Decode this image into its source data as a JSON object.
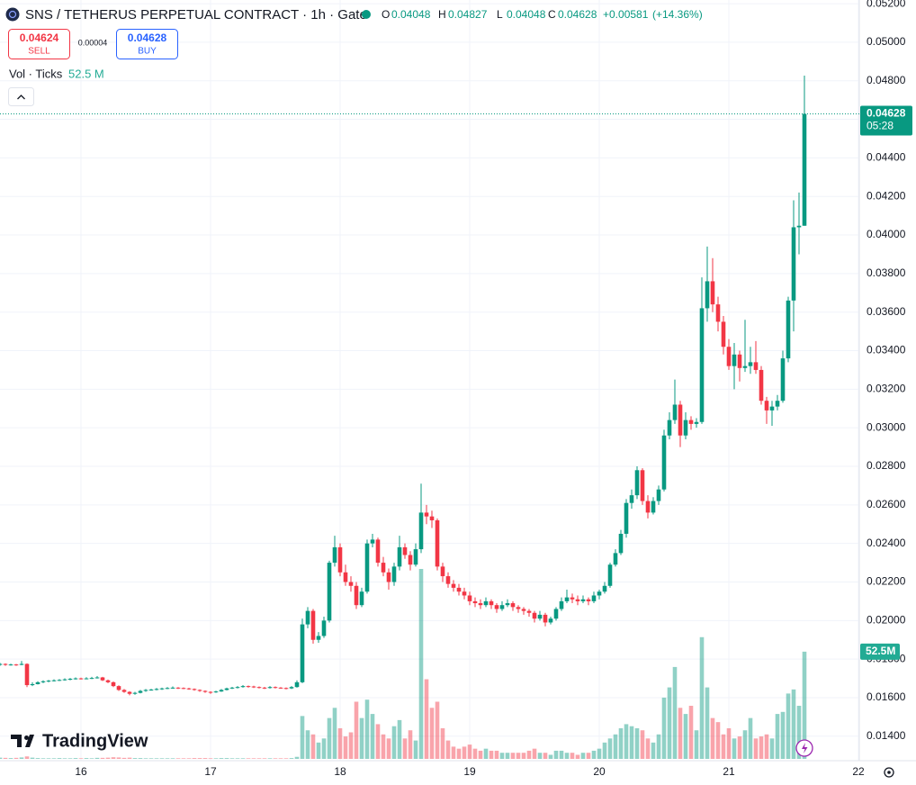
{
  "chart_data": {
    "type": "candlestick",
    "title": "SNS / TETHERUS PERPETUAL CONTRACT · 1h · Gate",
    "ohlc_labels": [
      "O",
      "H",
      "L",
      "C"
    ],
    "change": "+0.00581",
    "change_percent": "(+14.36%)",
    "sell_price": 0.04624,
    "sell_label": "SELL",
    "spread": 4e-05,
    "buy_price": 0.04628,
    "buy_label": "BUY",
    "volume_title": "Vol · Ticks",
    "volume_label": "52.5 M",
    "volume_axis_label": "52.5M",
    "countdown": "05:28",
    "brand": "TradingView",
    "grid": true,
    "up_color": "#089981",
    "down_color": "#f23645",
    "volume_up_color": "rgba(8,153,129,0.45)",
    "volume_down_color": "rgba(242,54,69,0.45)",
    "xlim": [
      0,
      159.5
    ],
    "xticks": [
      {
        "value": 15,
        "label": "16"
      },
      {
        "value": 39,
        "label": "17"
      },
      {
        "value": 63,
        "label": "18"
      },
      {
        "value": 87,
        "label": "19"
      },
      {
        "value": 111,
        "label": "20"
      },
      {
        "value": 135,
        "label": "21"
      },
      {
        "value": 159,
        "label": "22"
      }
    ],
    "ylim": [
      0.01273,
      0.05219
    ],
    "yticks": [
      {
        "value": 0.052,
        "label": "0.05200"
      },
      {
        "value": 0.05,
        "label": "0.05000"
      },
      {
        "value": 0.048,
        "label": "0.04800"
      },
      {
        "value": 0.046,
        "label": "0.04600"
      },
      {
        "value": 0.044,
        "label": "0.04400"
      },
      {
        "value": 0.042,
        "label": "0.04200"
      },
      {
        "value": 0.04,
        "label": "0.04000"
      },
      {
        "value": 0.038,
        "label": "0.03800"
      },
      {
        "value": 0.036,
        "label": "0.03600"
      },
      {
        "value": 0.034,
        "label": "0.03400"
      },
      {
        "value": 0.032,
        "label": "0.03200"
      },
      {
        "value": 0.03,
        "label": "0.03000"
      },
      {
        "value": 0.028,
        "label": "0.02800"
      },
      {
        "value": 0.026,
        "label": "0.02600"
      },
      {
        "value": 0.024,
        "label": "0.02400"
      },
      {
        "value": 0.022,
        "label": "0.02200"
      },
      {
        "value": 0.02,
        "label": "0.02000"
      },
      {
        "value": 0.018,
        "label": "0.01800"
      },
      {
        "value": 0.016,
        "label": "0.01600"
      },
      {
        "value": 0.014,
        "label": "0.01400"
      }
    ],
    "open": [
      0.0177,
      0.01775,
      0.0177,
      0.01772,
      0.0177,
      0.01775,
      0.01665,
      0.0167,
      0.0168,
      0.01685,
      0.01688,
      0.0169,
      0.01692,
      0.01695,
      0.01698,
      0.017,
      0.01698,
      0.017,
      0.01702,
      0.01705,
      0.0169,
      0.0168,
      0.0166,
      0.0164,
      0.0163,
      0.0162,
      0.01625,
      0.01635,
      0.0164,
      0.01642,
      0.01645,
      0.01648,
      0.0165,
      0.01652,
      0.0165,
      0.01648,
      0.01645,
      0.0164,
      0.01635,
      0.0163,
      0.01628,
      0.01632,
      0.0164,
      0.01648,
      0.01652,
      0.01655,
      0.0166,
      0.01658,
      0.01655,
      0.01652,
      0.0165,
      0.01655,
      0.01652,
      0.0165,
      0.01648,
      0.01655,
      0.0168,
      0.0198,
      0.0205,
      0.019,
      0.0192,
      0.02,
      0.023,
      0.0238,
      0.0225,
      0.022,
      0.0218,
      0.0208,
      0.0215,
      0.024,
      0.0242,
      0.023,
      0.0225,
      0.022,
      0.0228,
      0.0238,
      0.0234,
      0.0229,
      0.0237,
      0.0256,
      0.0254,
      0.0252,
      0.0228,
      0.0223,
      0.0219,
      0.0217,
      0.0215,
      0.0213,
      0.021,
      0.0209,
      0.0208,
      0.021,
      0.0208,
      0.0206,
      0.0208,
      0.0209,
      0.0207,
      0.0206,
      0.0205,
      0.0204,
      0.0201,
      0.0203,
      0.0199,
      0.0201,
      0.0206,
      0.021,
      0.0212,
      0.0211,
      0.021,
      0.0211,
      0.021,
      0.0213,
      0.0215,
      0.0218,
      0.0229,
      0.0235,
      0.0245,
      0.0261,
      0.0265,
      0.0278,
      0.0262,
      0.0256,
      0.0262,
      0.0268,
      0.0296,
      0.0304,
      0.0312,
      0.0296,
      0.0304,
      0.0302,
      0.0303,
      0.0362,
      0.0376,
      0.0364,
      0.0355,
      0.0342,
      0.0332,
      0.0338,
      0.0331,
      0.0332,
      0.0334,
      0.033,
      0.0314,
      0.0309,
      0.0311,
      0.0314,
      0.0336,
      0.0366,
      0.0404,
      0.04048
    ],
    "high": [
      0.0178,
      0.01778,
      0.01776,
      0.01775,
      0.0179,
      0.01778,
      0.0168,
      0.01685,
      0.0169,
      0.01692,
      0.01695,
      0.01696,
      0.017,
      0.01702,
      0.01705,
      0.01704,
      0.01706,
      0.01708,
      0.01712,
      0.01708,
      0.01694,
      0.01684,
      0.01664,
      0.01645,
      0.01634,
      0.0163,
      0.0164,
      0.01645,
      0.01646,
      0.0165,
      0.01652,
      0.01655,
      0.01658,
      0.01655,
      0.01653,
      0.01651,
      0.01648,
      0.01643,
      0.01638,
      0.01633,
      0.01636,
      0.01645,
      0.01652,
      0.01656,
      0.0166,
      0.01665,
      0.01663,
      0.01662,
      0.01658,
      0.01656,
      0.0166,
      0.01658,
      0.01655,
      0.01653,
      0.0166,
      0.0169,
      0.0201,
      0.0207,
      0.0206,
      0.0194,
      0.0202,
      0.0231,
      0.0244,
      0.024,
      0.0229,
      0.0223,
      0.022,
      0.0217,
      0.0242,
      0.0245,
      0.0243,
      0.0233,
      0.0227,
      0.023,
      0.0244,
      0.024,
      0.0236,
      0.024,
      0.0271,
      0.026,
      0.0257,
      0.0253,
      0.023,
      0.0225,
      0.0221,
      0.0219,
      0.0217,
      0.0215,
      0.0212,
      0.0211,
      0.0212,
      0.0211,
      0.0209,
      0.021,
      0.0211,
      0.021,
      0.0208,
      0.0207,
      0.0206,
      0.0205,
      0.0205,
      0.0204,
      0.0202,
      0.0207,
      0.0212,
      0.0216,
      0.0214,
      0.0213,
      0.0213,
      0.0212,
      0.0215,
      0.0216,
      0.022,
      0.023,
      0.0237,
      0.0247,
      0.0263,
      0.0268,
      0.028,
      0.0279,
      0.0265,
      0.0264,
      0.027,
      0.0299,
      0.0308,
      0.0325,
      0.0314,
      0.0308,
      0.0306,
      0.0305,
      0.0378,
      0.0394,
      0.0388,
      0.0368,
      0.0358,
      0.0346,
      0.0344,
      0.034,
      0.0356,
      0.0342,
      0.0345,
      0.0332,
      0.0316,
      0.0314,
      0.0317,
      0.034,
      0.0368,
      0.0418,
      0.0422,
      0.04827
    ],
    "low": [
      0.01765,
      0.01765,
      0.01766,
      0.01765,
      0.01768,
      0.01655,
      0.0166,
      0.01668,
      0.01675,
      0.0168,
      0.01684,
      0.01686,
      0.01688,
      0.0169,
      0.01694,
      0.01694,
      0.01695,
      0.01697,
      0.01699,
      0.01686,
      0.01675,
      0.01655,
      0.01635,
      0.01625,
      0.01612,
      0.01615,
      0.01622,
      0.0163,
      0.01636,
      0.01638,
      0.0164,
      0.01644,
      0.01646,
      0.01645,
      0.01644,
      0.01641,
      0.01636,
      0.0163,
      0.01625,
      0.0162,
      0.01625,
      0.0163,
      0.01637,
      0.01645,
      0.01648,
      0.01652,
      0.01652,
      0.0165,
      0.01648,
      0.01645,
      0.01647,
      0.01648,
      0.01646,
      0.01643,
      0.01645,
      0.01652,
      0.01675,
      0.0196,
      0.0188,
      0.01885,
      0.0191,
      0.0199,
      0.0228,
      0.0223,
      0.0218,
      0.0215,
      0.0206,
      0.0207,
      0.0214,
      0.0238,
      0.0228,
      0.0223,
      0.0216,
      0.0218,
      0.0226,
      0.0232,
      0.0226,
      0.0228,
      0.0235,
      0.025,
      0.0248,
      0.0226,
      0.022,
      0.0217,
      0.0215,
      0.0213,
      0.0211,
      0.0208,
      0.0207,
      0.0206,
      0.0207,
      0.0206,
      0.0204,
      0.0205,
      0.0207,
      0.0205,
      0.0204,
      0.0203,
      0.0202,
      0.0199,
      0.02,
      0.0197,
      0.0198,
      0.02,
      0.0205,
      0.0209,
      0.0209,
      0.0208,
      0.0209,
      0.0208,
      0.0209,
      0.0211,
      0.0214,
      0.0217,
      0.0228,
      0.0234,
      0.0243,
      0.0258,
      0.0263,
      0.026,
      0.0253,
      0.0255,
      0.026,
      0.0267,
      0.0294,
      0.0302,
      0.029,
      0.0294,
      0.0299,
      0.03,
      0.0302,
      0.0355,
      0.036,
      0.035,
      0.0338,
      0.033,
      0.032,
      0.0324,
      0.0329,
      0.0328,
      0.0328,
      0.0312,
      0.0302,
      0.0301,
      0.0309,
      0.0313,
      0.0334,
      0.035,
      0.039,
      0.04048
    ],
    "close": [
      0.01775,
      0.0177,
      0.01772,
      0.0177,
      0.01775,
      0.01665,
      0.0167,
      0.0168,
      0.01685,
      0.01688,
      0.0169,
      0.01692,
      0.01695,
      0.01698,
      0.017,
      0.01698,
      0.017,
      0.01702,
      0.01705,
      0.0169,
      0.0168,
      0.0166,
      0.0164,
      0.0163,
      0.0162,
      0.01625,
      0.01635,
      0.0164,
      0.01642,
      0.01645,
      0.01648,
      0.0165,
      0.01652,
      0.0165,
      0.01648,
      0.01645,
      0.0164,
      0.01635,
      0.0163,
      0.01628,
      0.01632,
      0.0164,
      0.01648,
      0.01652,
      0.01655,
      0.0166,
      0.01658,
      0.01655,
      0.01652,
      0.0165,
      0.01655,
      0.01652,
      0.0165,
      0.01648,
      0.01655,
      0.0168,
      0.0198,
      0.0205,
      0.019,
      0.0192,
      0.02,
      0.023,
      0.0238,
      0.0225,
      0.022,
      0.0218,
      0.0208,
      0.0215,
      0.024,
      0.0242,
      0.023,
      0.0225,
      0.022,
      0.0228,
      0.0238,
      0.0234,
      0.0229,
      0.0237,
      0.0256,
      0.0254,
      0.0252,
      0.0228,
      0.0223,
      0.0219,
      0.0217,
      0.0215,
      0.0213,
      0.021,
      0.0209,
      0.0208,
      0.021,
      0.0208,
      0.0206,
      0.0208,
      0.0209,
      0.0207,
      0.0206,
      0.0205,
      0.0204,
      0.0201,
      0.0203,
      0.0199,
      0.0201,
      0.0206,
      0.021,
      0.0212,
      0.0211,
      0.021,
      0.0211,
      0.021,
      0.0213,
      0.0215,
      0.0218,
      0.0229,
      0.0235,
      0.0245,
      0.0261,
      0.0265,
      0.0278,
      0.0262,
      0.0256,
      0.0262,
      0.0268,
      0.0296,
      0.0304,
      0.0312,
      0.0296,
      0.0304,
      0.0302,
      0.0303,
      0.0362,
      0.0376,
      0.0364,
      0.0355,
      0.0342,
      0.0332,
      0.0338,
      0.0331,
      0.0332,
      0.0334,
      0.033,
      0.0314,
      0.0309,
      0.0311,
      0.0314,
      0.0336,
      0.0366,
      0.0404,
      0.04048,
      0.04628
    ],
    "volume": [
      0.6,
      0.5,
      0.4,
      0.5,
      0.7,
      1.2,
      0.6,
      0.4,
      0.3,
      0.3,
      0.3,
      0.4,
      0.3,
      0.3,
      0.4,
      0.3,
      0.4,
      0.3,
      0.5,
      0.5,
      0.6,
      0.8,
      0.7,
      0.5,
      0.6,
      0.4,
      0.4,
      0.3,
      0.3,
      0.3,
      0.3,
      0.3,
      0.3,
      0.3,
      0.3,
      0.3,
      0.4,
      0.4,
      0.4,
      0.3,
      0.3,
      0.4,
      0.4,
      0.3,
      0.3,
      0.3,
      0.3,
      0.3,
      0.3,
      0.3,
      0.3,
      0.3,
      0.3,
      0.3,
      0.4,
      1,
      21,
      14,
      12,
      8,
      10,
      20,
      25,
      15,
      11,
      13,
      28,
      20,
      29,
      22,
      17,
      12,
      10,
      16,
      19,
      10,
      14,
      9,
      93,
      39,
      25,
      28,
      15,
      9,
      6,
      5,
      6,
      7,
      5,
      4,
      5,
      4,
      4,
      3,
      3,
      3,
      3,
      3,
      4,
      5,
      3,
      3,
      2,
      4,
      4,
      3,
      3,
      2,
      3,
      3,
      4,
      5,
      8,
      10,
      12,
      15,
      17,
      16,
      15,
      14,
      10,
      8,
      12,
      30,
      35,
      45,
      25,
      22,
      26,
      14,
      59.6,
      35,
      20,
      18,
      12,
      15,
      10,
      11,
      14,
      20,
      10,
      11,
      12,
      10,
      22,
      23,
      32,
      34,
      26,
      52.5
    ]
  }
}
